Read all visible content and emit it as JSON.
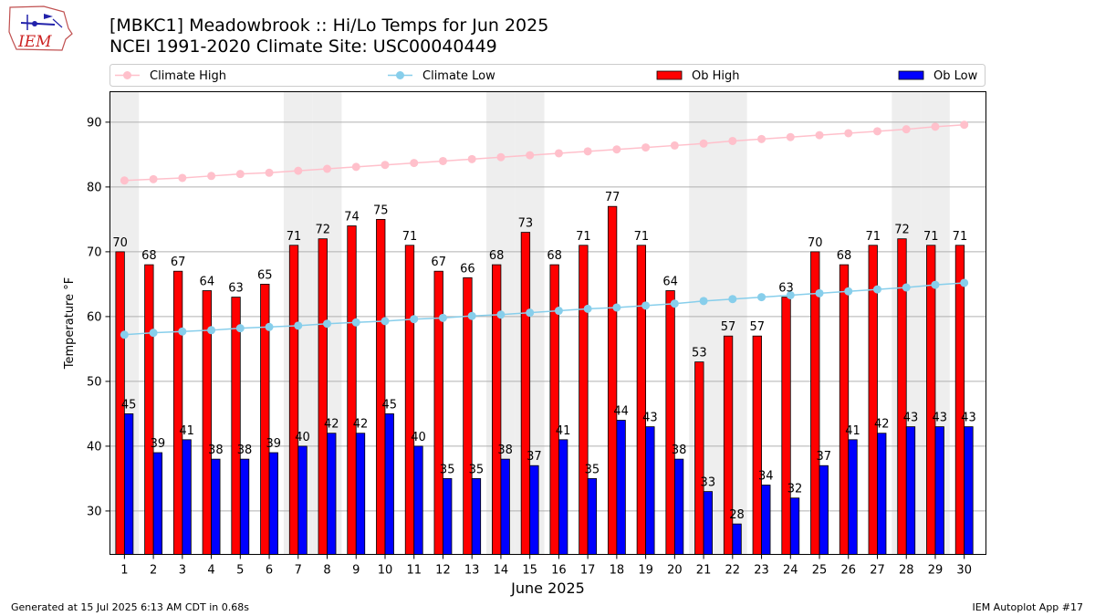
{
  "header": {
    "title_line1": "[MBKC1] Meadowbrook :: Hi/Lo Temps for Jun 2025",
    "title_line2": "NCEI 1991-2020 Climate Site: USC00040449",
    "logo_text": "IEM"
  },
  "footer": {
    "generated": "Generated at 15 Jul 2025 6:13 AM CDT in 0.68s",
    "app": "IEM Autoplot App #17"
  },
  "colors": {
    "climate_high": "#ffc0cb",
    "climate_low": "#87ceeb",
    "ob_high": "#ff0000",
    "ob_low": "#0000ff",
    "weekend_band": "#eeeeee",
    "grid": "#b0b0b0"
  },
  "chart_data": {
    "type": "bar",
    "xlabel": "June 2025",
    "ylabel": "Temperature °F",
    "ylim": [
      23.3,
      94.7
    ],
    "yticks": [
      30,
      40,
      50,
      60,
      70,
      80,
      90
    ],
    "grid": true,
    "legend_position": "top",
    "categories": [
      1,
      2,
      3,
      4,
      5,
      6,
      7,
      8,
      9,
      10,
      11,
      12,
      13,
      14,
      15,
      16,
      17,
      18,
      19,
      20,
      21,
      22,
      23,
      24,
      25,
      26,
      27,
      28,
      29,
      30
    ],
    "shaded_days": [
      1,
      7,
      8,
      14,
      15,
      21,
      22,
      28,
      29
    ],
    "series": [
      {
        "name": "Climate High",
        "type": "line",
        "values": [
          81.0,
          81.2,
          81.4,
          81.7,
          82.0,
          82.2,
          82.5,
          82.8,
          83.1,
          83.4,
          83.7,
          84.0,
          84.3,
          84.6,
          84.9,
          85.2,
          85.5,
          85.8,
          86.1,
          86.4,
          86.7,
          87.1,
          87.4,
          87.7,
          88.0,
          88.3,
          88.6,
          88.9,
          89.3,
          89.6
        ]
      },
      {
        "name": "Climate Low",
        "type": "line",
        "values": [
          57.2,
          57.5,
          57.7,
          57.9,
          58.2,
          58.4,
          58.6,
          58.9,
          59.1,
          59.3,
          59.6,
          59.8,
          60.1,
          60.3,
          60.6,
          60.9,
          61.2,
          61.4,
          61.7,
          62.0,
          62.4,
          62.7,
          63.0,
          63.3,
          63.6,
          63.9,
          64.2,
          64.5,
          64.9,
          65.2
        ]
      },
      {
        "name": "Ob High",
        "type": "bar",
        "values": [
          70,
          68,
          67,
          64,
          63,
          65,
          71,
          72,
          74,
          75,
          71,
          67,
          66,
          68,
          73,
          68,
          71,
          77,
          71,
          64,
          53,
          57,
          57,
          63,
          70,
          68,
          71,
          72,
          71,
          71
        ]
      },
      {
        "name": "Ob Low",
        "type": "bar",
        "values": [
          45,
          39,
          41,
          38,
          38,
          39,
          40,
          42,
          42,
          45,
          40,
          35,
          35,
          38,
          37,
          41,
          35,
          44,
          43,
          38,
          33,
          28,
          34,
          32,
          37,
          41,
          42,
          43,
          43,
          43
        ]
      }
    ]
  }
}
